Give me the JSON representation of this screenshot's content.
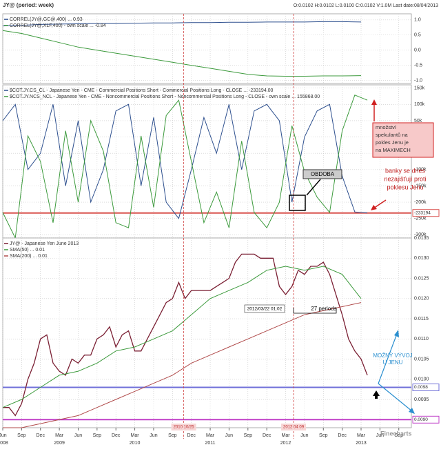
{
  "header": {
    "title": "JY@ (period: week)",
    "ohlc": "O:0.0102 H:0.0102 L:0.0100 C:0.0102 V:1.0M Last date:08/04/2013"
  },
  "chart_data": [
    {
      "type": "line",
      "ylim": [
        -1.1,
        1.2
      ],
      "yticks": [
        {
          "value": 1,
          "label": "1.0"
        },
        0.5,
        {
          "value": 0,
          "label": "0.0"
        },
        -0.5,
        {
          "value": -1,
          "label": "-1.0"
        }
      ],
      "grid": true,
      "series": [
        {
          "name": "CORREL(JY@,GC@,400) ... 0.93",
          "color": "#2d4f8e",
          "x": [
            "2008-06",
            "2008-09",
            "2008-12",
            "2009-03",
            "2009-06",
            "2009-09",
            "2009-12",
            "2010-03",
            "2010-06",
            "2010-09",
            "2010-12",
            "2011-03",
            "2011-06",
            "2011-09",
            "2011-12",
            "2012-03",
            "2012-06",
            "2012-09",
            "2012-12",
            "2013-03"
          ],
          "values": [
            0.8,
            0.82,
            0.85,
            0.86,
            0.87,
            0.88,
            0.88,
            0.89,
            0.9,
            0.9,
            0.91,
            0.91,
            0.92,
            0.92,
            0.93,
            0.93,
            0.93,
            0.94,
            0.94,
            0.93
          ]
        },
        {
          "name": "CORREL(JY@,XLF,400) - own scale ... -0.84",
          "color": "#3c9a3c",
          "x": [
            "2008-06",
            "2008-09",
            "2008-12",
            "2009-03",
            "2009-06",
            "2009-09",
            "2009-12",
            "2010-03",
            "2010-06",
            "2010-09",
            "2010-12",
            "2011-03",
            "2011-06",
            "2011-09",
            "2011-12",
            "2012-03",
            "2012-06",
            "2012-09",
            "2012-12",
            "2013-03"
          ],
          "values": [
            0.65,
            0.55,
            0.4,
            0.25,
            0.1,
            0.0,
            -0.1,
            -0.2,
            -0.3,
            -0.4,
            -0.5,
            -0.6,
            -0.7,
            -0.8,
            -0.85,
            -0.86,
            -0.86,
            -0.85,
            -0.85,
            -0.84
          ]
        }
      ]
    },
    {
      "type": "line",
      "ylim": [
        -310000,
        160000
      ],
      "y2lim": [
        -150000,
        150000
      ],
      "yticks": [
        {
          "value": 150000,
          "label": "150k"
        },
        {
          "value": 100000,
          "label": "100k"
        },
        {
          "value": 50000,
          "label": "50k"
        },
        {
          "value": 0,
          "label": "0k"
        },
        {
          "value": -50000,
          "label": "-50k"
        },
        {
          "value": -100000,
          "label": "-100k"
        },
        {
          "value": -150000,
          "label": "-150k"
        },
        {
          "value": -200000,
          "label": "-200k"
        },
        {
          "value": -250000,
          "label": "-250k"
        },
        {
          "value": -300000,
          "label": "-300k"
        }
      ],
      "grid": true,
      "hlines": [
        {
          "value": -233194,
          "label": "-233194",
          "color": "#d9534f"
        }
      ],
      "series": [
        {
          "name": "$COT.JY.CS_CL - Japanese Yen - CME - Commercial Positions Short - Commercial Positions Long - CLOSE ... -233194.00",
          "color": "#2d4f8e",
          "x": [
            "2008-06",
            "2008-08",
            "2008-10",
            "2008-12",
            "2009-02",
            "2009-04",
            "2009-06",
            "2009-08",
            "2009-10",
            "2009-12",
            "2010-02",
            "2010-04",
            "2010-06",
            "2010-08",
            "2010-10",
            "2010-12",
            "2011-02",
            "2011-04",
            "2011-06",
            "2011-08",
            "2011-10",
            "2011-12",
            "2012-02",
            "2012-04",
            "2012-06",
            "2012-08",
            "2012-10",
            "2012-12",
            "2013-02",
            "2013-04"
          ],
          "values": [
            50000,
            100000,
            -100000,
            -50000,
            100000,
            -150000,
            50000,
            -200000,
            -100000,
            80000,
            100000,
            -150000,
            60000,
            -200000,
            -250000,
            -100000,
            60000,
            -50000,
            100000,
            -100000,
            80000,
            100000,
            50000,
            -200000,
            0,
            80000,
            100000,
            -120000,
            -230000,
            -233194
          ]
        },
        {
          "name": "$COT.JY.NCS_NCL - Japanese Yen - CME - Noncommercial Positions Short - Noncommercial Positions Long - CLOSE - own scale ... 155868.00",
          "color": "#3c9a3c",
          "axis": "y2",
          "x": [
            "2008-06",
            "2008-08",
            "2008-10",
            "2008-12",
            "2009-02",
            "2009-04",
            "2009-06",
            "2009-08",
            "2009-10",
            "2009-12",
            "2010-02",
            "2010-04",
            "2010-06",
            "2010-08",
            "2010-10",
            "2010-12",
            "2011-02",
            "2011-04",
            "2011-06",
            "2011-08",
            "2011-10",
            "2011-12",
            "2012-02",
            "2012-04",
            "2012-06",
            "2012-08",
            "2012-10",
            "2012-12",
            "2013-02",
            "2013-04"
          ],
          "values": [
            -100000,
            -150000,
            50000,
            0,
            -120000,
            60000,
            -80000,
            80000,
            20000,
            -120000,
            -130000,
            50000,
            -90000,
            90000,
            120000,
            0,
            -120000,
            -60000,
            -130000,
            40000,
            -100000,
            -130000,
            -80000,
            70000,
            -20000,
            -70000,
            -100000,
            60000,
            130000,
            120000
          ]
        }
      ]
    },
    {
      "type": "line",
      "ylim": [
        0.0088,
        0.0135
      ],
      "yticks": [
        0.0135,
        {
          "value": 0.013,
          "label": "0.0130"
        },
        0.0125,
        {
          "value": 0.012,
          "label": "0.0120"
        },
        0.0115,
        {
          "value": 0.011,
          "label": "0.0110"
        },
        0.0105,
        {
          "value": 0.01,
          "label": "0.0100"
        },
        0.0095,
        {
          "value": 0.009,
          "label": "0.0090"
        }
      ],
      "grid": true,
      "xlim": [
        "2008-06",
        "2013-11"
      ],
      "xticks": [
        {
          "value": "2008-06",
          "label": "Jun"
        },
        {
          "value": "2008-09",
          "label": "Sep"
        },
        {
          "value": "2008-12",
          "label": "Dec"
        },
        {
          "value": "2009-03",
          "label": "Mar"
        },
        {
          "value": "2009-06",
          "label": "Jun"
        },
        {
          "value": "2009-09",
          "label": "Sep"
        },
        {
          "value": "2009-12",
          "label": "Dec"
        },
        {
          "value": "2010-03",
          "label": "Mar"
        },
        {
          "value": "2010-06",
          "label": "Jun"
        },
        {
          "value": "2010-09",
          "label": "Sep"
        },
        {
          "value": "2010-12",
          "label": "Dec"
        },
        {
          "value": "2011-03",
          "label": "Mar"
        },
        {
          "value": "2011-06",
          "label": "Jun"
        },
        {
          "value": "2011-09",
          "label": "Sep"
        },
        {
          "value": "2011-12",
          "label": "Dec"
        },
        {
          "value": "2012-03",
          "label": "Mar"
        },
        {
          "value": "2012-06",
          "label": "Jun"
        },
        {
          "value": "2012-09",
          "label": "Sep"
        },
        {
          "value": "2012-12",
          "label": "Dec"
        },
        {
          "value": "2013-03",
          "label": "Mar"
        },
        {
          "value": "2013-06",
          "label": "Jun"
        },
        {
          "value": "2013-09",
          "label": "Sep"
        }
      ],
      "year_labels": [
        {
          "value": "2008-06",
          "label": "2008"
        },
        {
          "value": "2009-03",
          "label": "2009"
        },
        {
          "value": "2010-03",
          "label": "2010"
        },
        {
          "value": "2011-03",
          "label": "2011"
        },
        {
          "value": "2012-03",
          "label": "2012"
        },
        {
          "value": "2013-03",
          "label": "2013"
        }
      ],
      "vlines": [
        {
          "x": "2010-10-25",
          "label": "2010 10/25"
        },
        {
          "x": "2012-04-09",
          "label": "2012 04 09"
        }
      ],
      "hlines": [
        {
          "value": 0.0098,
          "label": "0.0098",
          "color": "#6f6fd8"
        },
        {
          "value": 0.009,
          "label": "0.0090",
          "color": "#c040c8"
        }
      ],
      "series": [
        {
          "name": "JY@ - Japanese Yen June 2013",
          "color": "#7a1f33",
          "x": [
            "2008-06",
            "2008-07",
            "2008-08",
            "2008-09",
            "2008-10",
            "2008-11",
            "2008-12",
            "2009-01",
            "2009-02",
            "2009-03",
            "2009-04",
            "2009-05",
            "2009-06",
            "2009-07",
            "2009-08",
            "2009-09",
            "2009-10",
            "2009-11",
            "2009-12",
            "2010-01",
            "2010-02",
            "2010-03",
            "2010-04",
            "2010-05",
            "2010-06",
            "2010-07",
            "2010-08",
            "2010-09",
            "2010-10",
            "2010-11",
            "2010-12",
            "2011-01",
            "2011-02",
            "2011-03",
            "2011-04",
            "2011-05",
            "2011-06",
            "2011-07",
            "2011-08",
            "2011-09",
            "2011-10",
            "2011-11",
            "2011-12",
            "2012-01",
            "2012-02",
            "2012-03",
            "2012-04",
            "2012-05",
            "2012-06",
            "2012-07",
            "2012-08",
            "2012-09",
            "2012-10",
            "2012-11",
            "2012-12",
            "2013-01",
            "2013-02",
            "2013-03",
            "2013-04"
          ],
          "values": [
            0.0093,
            0.0093,
            0.0091,
            0.0094,
            0.01,
            0.0104,
            0.011,
            0.0111,
            0.0104,
            0.0102,
            0.0101,
            0.0105,
            0.0104,
            0.0106,
            0.0106,
            0.011,
            0.0111,
            0.0113,
            0.0108,
            0.0111,
            0.0112,
            0.0107,
            0.0107,
            0.011,
            0.0113,
            0.0116,
            0.0119,
            0.012,
            0.0124,
            0.012,
            0.0122,
            0.0122,
            0.0122,
            0.0122,
            0.0123,
            0.0124,
            0.0125,
            0.0129,
            0.0131,
            0.0131,
            0.0131,
            0.013,
            0.013,
            0.013,
            0.0123,
            0.0121,
            0.0123,
            0.0127,
            0.0126,
            0.0128,
            0.0128,
            0.0129,
            0.0126,
            0.0121,
            0.0116,
            0.011,
            0.0107,
            0.0105,
            0.0101
          ]
        },
        {
          "name": "SMA(50) ... 0.01",
          "color": "#3c9a3c",
          "x": [
            "2008-06",
            "2008-09",
            "2008-12",
            "2009-03",
            "2009-06",
            "2009-09",
            "2009-12",
            "2010-03",
            "2010-06",
            "2010-09",
            "2010-12",
            "2011-03",
            "2011-06",
            "2011-09",
            "2011-12",
            "2012-03",
            "2012-06",
            "2012-09",
            "2012-12",
            "2013-03"
          ],
          "values": [
            0.0093,
            0.0095,
            0.0098,
            0.0101,
            0.0102,
            0.0104,
            0.0107,
            0.0108,
            0.011,
            0.0112,
            0.0116,
            0.012,
            0.0122,
            0.0124,
            0.0127,
            0.0128,
            0.0127,
            0.0128,
            0.0126,
            0.012
          ]
        },
        {
          "name": "SMA(200) ... 0.01",
          "color": "#b04a4a",
          "x": [
            "2008-06",
            "2008-09",
            "2008-12",
            "2009-03",
            "2009-06",
            "2009-09",
            "2009-12",
            "2010-03",
            "2010-06",
            "2010-09",
            "2010-12",
            "2011-03",
            "2011-06",
            "2011-09",
            "2011-12",
            "2012-03",
            "2012-06",
            "2012-09",
            "2012-12",
            "2013-03"
          ],
          "values": [
            0.0088,
            0.0088,
            0.0089,
            0.009,
            0.0091,
            0.0093,
            0.0095,
            0.0097,
            0.0099,
            0.0101,
            0.0104,
            0.0106,
            0.0108,
            0.011,
            0.0112,
            0.0114,
            0.0116,
            0.0117,
            0.0118,
            0.0119
          ]
        }
      ]
    }
  ],
  "annotations": {
    "obdoba": "OBDOBA",
    "speculators": [
      "množství",
      "spekulantů na",
      "pokles Jenu je",
      "na MAXIMECH"
    ],
    "banks": [
      "banky se dnes",
      "nezajišťují proti",
      "poklesu Jenu"
    ],
    "date_box": "2012/03/22 01:02",
    "periods": "27 periods",
    "outlook": [
      "MOŽNÝ VÝVOJ",
      "U JENU"
    ],
    "brand": "Finecharts"
  }
}
